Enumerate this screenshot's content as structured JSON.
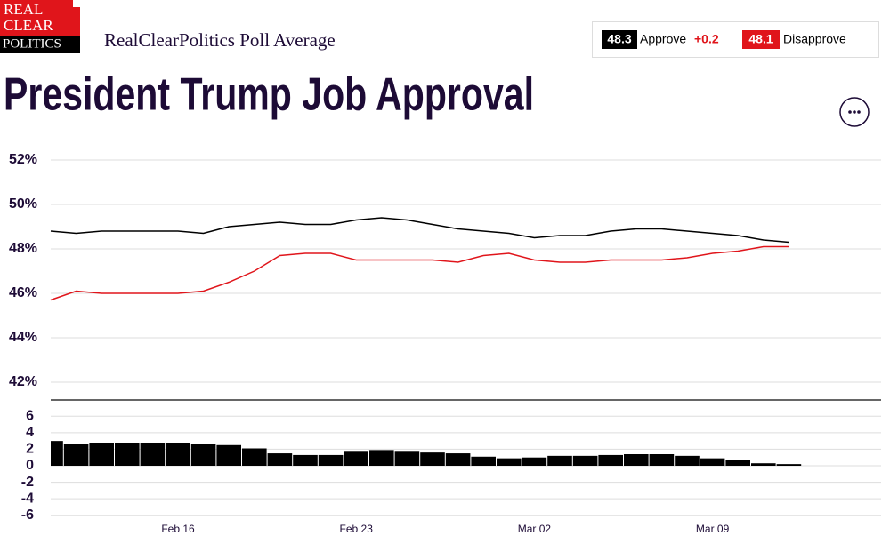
{
  "logo": [
    "REAL",
    "CLEAR",
    "POLITICS"
  ],
  "site_label": "RealClearPolitics Poll Average",
  "chart_data": {
    "type": "line",
    "title": "President Trump Job Approval",
    "categories": [
      null,
      null,
      null,
      null,
      null,
      "Feb 16",
      null,
      null,
      null,
      null,
      null,
      null,
      "Feb 23",
      null,
      null,
      null,
      null,
      null,
      null,
      "Mar 02",
      null,
      null,
      null,
      null,
      null,
      null,
      "Mar 09",
      null,
      null,
      null
    ],
    "series": [
      {
        "name": "Approve",
        "color": "#000000",
        "latest": "48.3",
        "change": "+0.2",
        "values": [
          48.8,
          48.7,
          48.8,
          48.8,
          48.8,
          48.8,
          48.7,
          49.0,
          49.1,
          49.2,
          49.1,
          49.1,
          49.3,
          49.4,
          49.3,
          49.1,
          48.9,
          48.8,
          48.7,
          48.5,
          48.6,
          48.6,
          48.8,
          48.9,
          48.9,
          48.8,
          48.7,
          48.6,
          48.4,
          48.3
        ]
      },
      {
        "name": "Disapprove",
        "color": "#e0151b",
        "latest": "48.1",
        "values": [
          45.7,
          46.1,
          46.0,
          46.0,
          46.0,
          46.0,
          46.1,
          46.5,
          47.0,
          47.7,
          47.8,
          47.8,
          47.5,
          47.5,
          47.5,
          47.5,
          47.4,
          47.7,
          47.8,
          47.5,
          47.4,
          47.4,
          47.5,
          47.5,
          47.5,
          47.6,
          47.8,
          47.9,
          48.1,
          48.1
        ]
      }
    ],
    "ylim": [
      41.2,
      52.6
    ],
    "yticks": [
      {
        "value": 52,
        "label": "52%"
      },
      {
        "value": 50,
        "label": "50%"
      },
      {
        "value": 48,
        "label": "48%"
      },
      {
        "value": 46,
        "label": "46%"
      },
      {
        "value": 44,
        "label": "44%"
      },
      {
        "value": 42,
        "label": "42%"
      }
    ],
    "grid": true,
    "spread": {
      "type": "bar",
      "color": "#000000",
      "values": [
        3.0,
        2.6,
        2.8,
        2.8,
        2.8,
        2.8,
        2.6,
        2.5,
        2.1,
        1.5,
        1.3,
        1.3,
        1.8,
        1.9,
        1.8,
        1.6,
        1.5,
        1.1,
        0.9,
        1.0,
        1.2,
        1.2,
        1.3,
        1.4,
        1.4,
        1.2,
        0.9,
        0.7,
        0.3,
        0.2
      ],
      "ylim": [
        -7,
        7
      ],
      "yticks": [
        6,
        4,
        2,
        0,
        -2,
        -4,
        -6
      ]
    }
  }
}
